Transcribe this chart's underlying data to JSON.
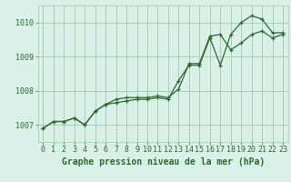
{
  "title": "Graphe pression niveau de la mer (hPa)",
  "x_labels": [
    "0",
    "1",
    "2",
    "3",
    "4",
    "5",
    "6",
    "7",
    "8",
    "9",
    "10",
    "11",
    "12",
    "13",
    "14",
    "15",
    "16",
    "17",
    "18",
    "19",
    "20",
    "21",
    "22",
    "23"
  ],
  "hours": [
    0,
    1,
    2,
    3,
    4,
    5,
    6,
    7,
    8,
    9,
    10,
    11,
    12,
    13,
    14,
    15,
    16,
    17,
    18,
    19,
    20,
    21,
    22,
    23
  ],
  "series1": [
    1006.9,
    1007.1,
    1007.1,
    1007.2,
    1007.0,
    1007.4,
    1007.6,
    1007.65,
    1007.7,
    1007.75,
    1007.75,
    1007.8,
    1007.75,
    1008.3,
    1008.75,
    1008.75,
    1009.55,
    1008.75,
    1009.65,
    1010.0,
    1010.2,
    1010.1,
    1009.7,
    1009.7
  ],
  "series2": [
    1006.9,
    1007.1,
    1007.1,
    1007.2,
    1007.0,
    1007.4,
    1007.6,
    1007.75,
    1007.8,
    1007.8,
    1007.8,
    1007.85,
    1007.8,
    1008.05,
    1008.8,
    1008.8,
    1009.6,
    1009.65,
    1009.2,
    1009.4,
    1009.65,
    1009.75,
    1009.55,
    1009.65
  ],
  "line_color": "#2d6a2d",
  "bg_color": "#d8f0e8",
  "grid_color": "#a0c8b0",
  "ylim": [
    1006.5,
    1010.5
  ],
  "yticks": [
    1007,
    1008,
    1009,
    1010
  ],
  "title_fontsize": 7,
  "tick_fontsize": 6,
  "xlabel_fontsize": 7
}
